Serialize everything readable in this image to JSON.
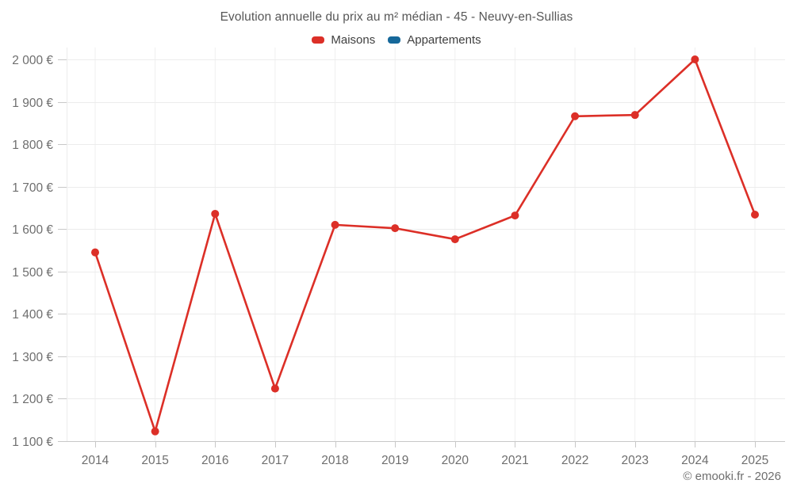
{
  "header": {
    "title": "Evolution annuelle du prix au m² médian - 45 - Neuvy-en-Sullias"
  },
  "legend": {
    "items": [
      {
        "label": "Maisons",
        "color": "#dc2f27"
      },
      {
        "label": "Appartements",
        "color": "#16689a"
      }
    ]
  },
  "footer": {
    "credit": "© emooki.fr - 2026"
  },
  "chart_data": {
    "type": "line",
    "title": "Evolution annuelle du prix au m² médian - 45 - Neuvy-en-Sullias",
    "xlabel": "",
    "ylabel": "",
    "x": [
      2014,
      2015,
      2016,
      2017,
      2018,
      2019,
      2020,
      2021,
      2022,
      2023,
      2024,
      2025
    ],
    "series": [
      {
        "name": "Maisons",
        "color": "#dc2f27",
        "values": [
          1545,
          1123,
          1636,
          1224,
          1610,
          1602,
          1576,
          1632,
          1866,
          1869,
          2000,
          1634
        ]
      },
      {
        "name": "Appartements",
        "color": "#16689a",
        "values": []
      }
    ],
    "ylim": [
      1100,
      2000
    ],
    "y_ticks": [
      1100,
      1200,
      1300,
      1400,
      1500,
      1600,
      1700,
      1800,
      1900,
      2000
    ],
    "y_tick_labels": [
      "1 100 €",
      "1 200 €",
      "1 300 €",
      "1 400 €",
      "1 500 €",
      "1 600 €",
      "1 700 €",
      "1 800 €",
      "1 900 €",
      "2 000 €"
    ],
    "grid": true,
    "legend_position": "top",
    "currency_suffix": " €"
  }
}
